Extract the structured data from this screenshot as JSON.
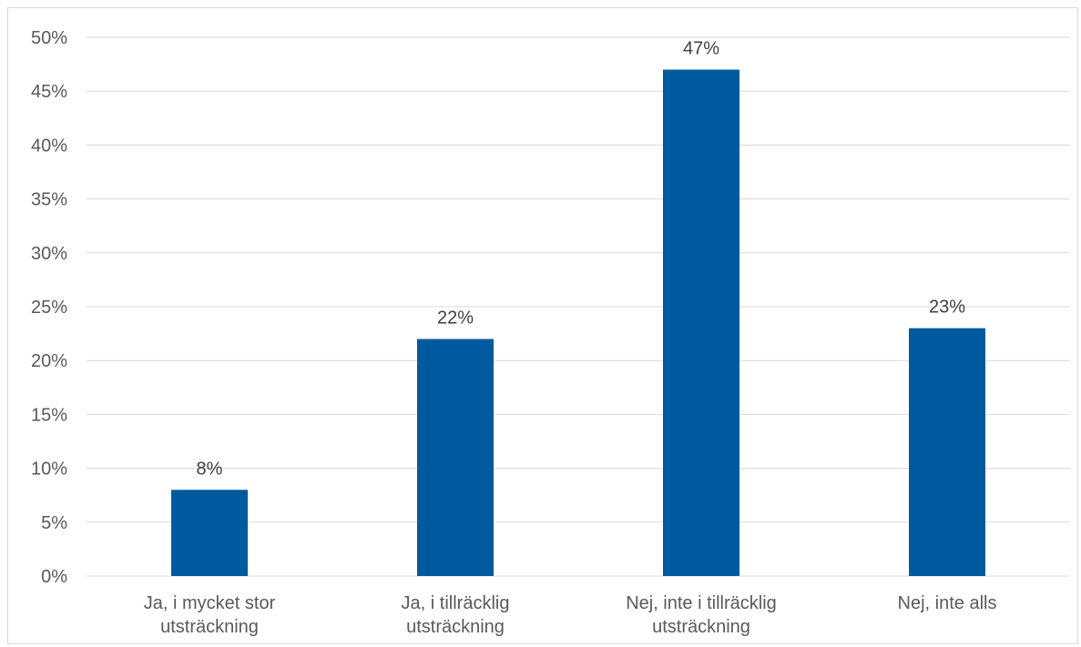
{
  "chart_data": {
    "type": "bar",
    "categories": [
      [
        "Ja, i mycket stor",
        "utsträckning"
      ],
      [
        "Ja, i tillräcklig",
        "utsträckning"
      ],
      [
        "Nej, inte i tillräcklig",
        "utsträckning"
      ],
      [
        "Nej, inte alls"
      ]
    ],
    "values": [
      8,
      22,
      47,
      23
    ],
    "data_labels": [
      "8%",
      "22%",
      "47%",
      "23%"
    ],
    "y_ticks": [
      0,
      5,
      10,
      15,
      20,
      25,
      30,
      35,
      40,
      45,
      50
    ],
    "y_tick_labels": [
      "0%",
      "5%",
      "10%",
      "15%",
      "20%",
      "25%",
      "30%",
      "35%",
      "40%",
      "45%",
      "50%"
    ],
    "ylim": [
      0,
      50
    ],
    "title": "",
    "xlabel": "",
    "ylabel": "",
    "grid": true,
    "legend": "none",
    "bar_color": "#005a9e"
  }
}
